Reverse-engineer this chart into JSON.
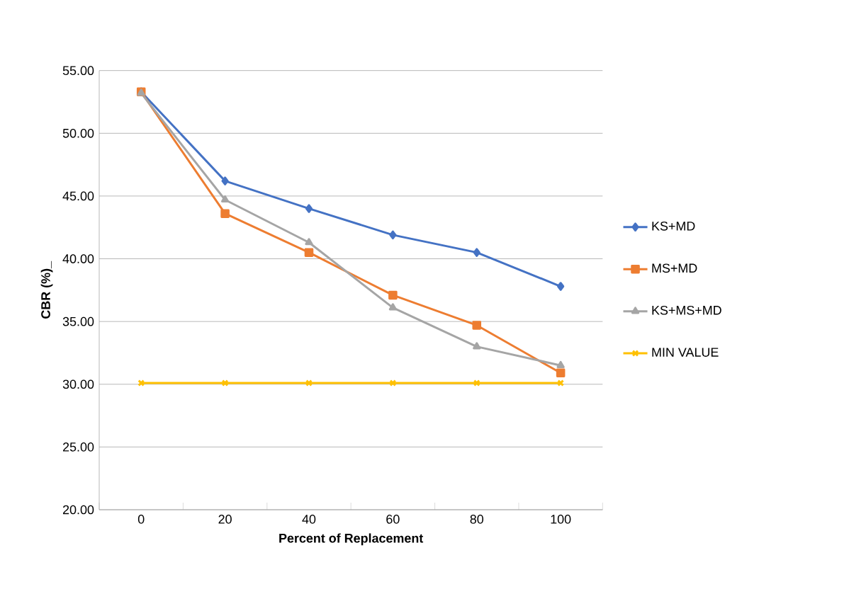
{
  "chart_data": {
    "type": "line",
    "xlabel": "Percent of Replacement",
    "ylabel": "CBR (%)_",
    "categories": [
      "0",
      "20",
      "40",
      "60",
      "80",
      "100"
    ],
    "series": [
      {
        "name": "KS+MD",
        "color": "#4472c4",
        "marker": "diamond",
        "values": [
          53.3,
          46.2,
          44.0,
          41.9,
          40.5,
          37.8
        ]
      },
      {
        "name": "MS+MD",
        "color": "#ed7d31",
        "marker": "square",
        "values": [
          53.3,
          43.6,
          40.5,
          37.1,
          34.7,
          30.9
        ]
      },
      {
        "name": "KS+MS+MD",
        "color": "#a5a5a5",
        "marker": "triangle",
        "values": [
          53.2,
          44.7,
          41.3,
          36.1,
          33.0,
          31.5
        ]
      },
      {
        "name": "MIN VALUE",
        "color": "#ffc000",
        "marker": "cross",
        "values": [
          30.1,
          30.1,
          30.1,
          30.1,
          30.1,
          30.1
        ]
      }
    ],
    "ylim": [
      20,
      55
    ],
    "yticks": [
      {
        "value": 20,
        "label": "20.00"
      },
      {
        "value": 25,
        "label": "25.00"
      },
      {
        "value": 30,
        "label": "30.00"
      },
      {
        "value": 35,
        "label": "35.00"
      },
      {
        "value": 40,
        "label": "40.00"
      },
      {
        "value": 45,
        "label": "45.00"
      },
      {
        "value": 50,
        "label": "50.00"
      },
      {
        "value": 55,
        "label": "55.00"
      }
    ],
    "grid": "y",
    "legend": "right"
  }
}
